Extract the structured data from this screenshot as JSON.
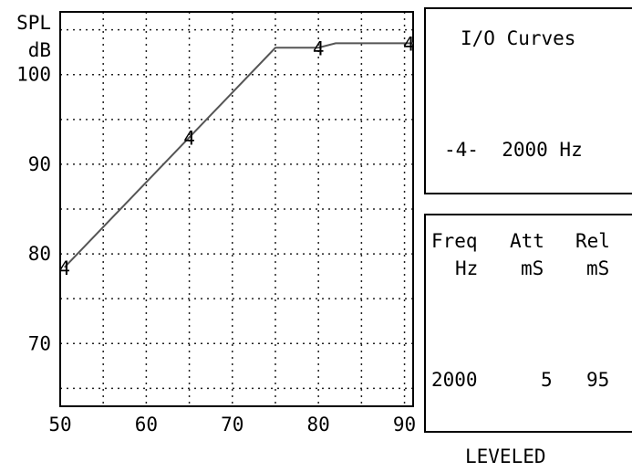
{
  "chart_data": {
    "type": "line",
    "ylabel": [
      "SPL",
      "dB"
    ],
    "xlim": [
      50,
      91
    ],
    "ylim": [
      63,
      107
    ],
    "xticks": [
      50,
      60,
      70,
      80,
      90
    ],
    "yticks": [
      70,
      80,
      90,
      100
    ],
    "grid": true,
    "series": [
      {
        "marker": "4",
        "points": [
          [
            50.5,
            78.5
          ],
          [
            75,
            103
          ],
          [
            80,
            103
          ],
          [
            82,
            103.5
          ],
          [
            90,
            103.5
          ],
          [
            91,
            103.5
          ]
        ],
        "marker_points": [
          [
            50.5,
            78.5
          ],
          [
            65,
            93
          ],
          [
            80,
            103
          ],
          [
            90.5,
            103.5
          ]
        ]
      }
    ]
  },
  "io_panel": {
    "title": "I/O Curves",
    "legend_entry": "-4-  2000 Hz"
  },
  "table_panel": {
    "headers": [
      [
        "Freq",
        "Hz"
      ],
      [
        "Att",
        "mS"
      ],
      [
        "Rel",
        "mS"
      ]
    ],
    "rows": [
      [
        "2000",
        "5",
        "95"
      ]
    ]
  },
  "footer": "LEVELED"
}
